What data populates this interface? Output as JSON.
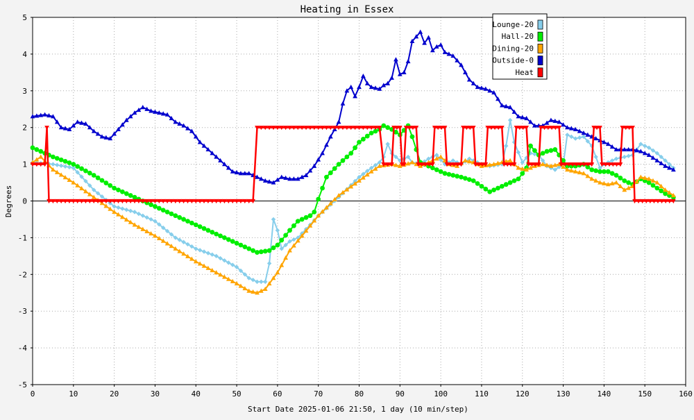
{
  "chart_data": {
    "type": "line",
    "title": "Heating in Essex",
    "xlabel": "Start Date 2025-01-06 21:50, 1 day (10 min/step)",
    "ylabel": "Degrees",
    "xlim": [
      0,
      160
    ],
    "ylim": [
      -5,
      5
    ],
    "xticks": [
      0,
      10,
      20,
      30,
      40,
      50,
      60,
      70,
      80,
      90,
      100,
      110,
      120,
      130,
      140,
      150,
      160
    ],
    "yticks": [
      -5,
      -4,
      -3,
      -2,
      -1,
      0,
      1,
      2,
      3,
      4,
      5
    ],
    "grid": true,
    "legend_position": "top-right",
    "series": [
      {
        "name": "Lounge-20",
        "color": "#87ceeb",
        "marker": "diamond",
        "points": [
          [
            0,
            1.05
          ],
          [
            5,
            1.0
          ],
          [
            10,
            0.9
          ],
          [
            15,
            0.3
          ],
          [
            20,
            -0.15
          ],
          [
            25,
            -0.3
          ],
          [
            30,
            -0.55
          ],
          [
            35,
            -1.0
          ],
          [
            40,
            -1.3
          ],
          [
            45,
            -1.5
          ],
          [
            50,
            -1.8
          ],
          [
            53,
            -2.1
          ],
          [
            55,
            -2.2
          ],
          [
            57,
            -2.2
          ],
          [
            58,
            -1.7
          ],
          [
            59,
            -0.5
          ],
          [
            60,
            -0.8
          ],
          [
            61,
            -1.3
          ],
          [
            63,
            -1.1
          ],
          [
            65,
            -1.0
          ],
          [
            68,
            -0.65
          ],
          [
            70,
            -0.4
          ],
          [
            75,
            0.1
          ],
          [
            80,
            0.65
          ],
          [
            83,
            0.9
          ],
          [
            85,
            1.05
          ],
          [
            86,
            1.2
          ],
          [
            87,
            1.55
          ],
          [
            88,
            1.3
          ],
          [
            90,
            1.1
          ],
          [
            92,
            1.2
          ],
          [
            93,
            1.05
          ],
          [
            95,
            1.0
          ],
          [
            97,
            1.15
          ],
          [
            99,
            1.25
          ],
          [
            101,
            1.0
          ],
          [
            103,
            1.1
          ],
          [
            105,
            1.0
          ],
          [
            107,
            1.15
          ],
          [
            110,
            1.0
          ],
          [
            112,
            0.95
          ],
          [
            115,
            1.0
          ],
          [
            116,
            1.5
          ],
          [
            117,
            2.2
          ],
          [
            118,
            1.6
          ],
          [
            120,
            1.05
          ],
          [
            122,
            1.3
          ],
          [
            124,
            1.25
          ],
          [
            126,
            0.95
          ],
          [
            128,
            0.85
          ],
          [
            130,
            1.0
          ],
          [
            131,
            1.8
          ],
          [
            133,
            1.7
          ],
          [
            135,
            1.75
          ],
          [
            137,
            1.5
          ],
          [
            139,
            0.9
          ],
          [
            140,
            1.0
          ],
          [
            143,
            1.15
          ],
          [
            145,
            1.2
          ],
          [
            147,
            1.25
          ],
          [
            149,
            1.55
          ],
          [
            151,
            1.45
          ],
          [
            153,
            1.3
          ],
          [
            155,
            1.1
          ],
          [
            157,
            0.9
          ]
        ]
      },
      {
        "name": "Hall-20",
        "color": "#00ee00",
        "marker": "circle",
        "points": [
          [
            0,
            1.45
          ],
          [
            5,
            1.2
          ],
          [
            10,
            1.0
          ],
          [
            15,
            0.7
          ],
          [
            20,
            0.35
          ],
          [
            25,
            0.1
          ],
          [
            30,
            -0.15
          ],
          [
            35,
            -0.4
          ],
          [
            40,
            -0.65
          ],
          [
            45,
            -0.9
          ],
          [
            50,
            -1.15
          ],
          [
            55,
            -1.4
          ],
          [
            58,
            -1.35
          ],
          [
            60,
            -1.2
          ],
          [
            63,
            -0.8
          ],
          [
            65,
            -0.55
          ],
          [
            68,
            -0.4
          ],
          [
            69,
            -0.3
          ],
          [
            70,
            0.05
          ],
          [
            72,
            0.65
          ],
          [
            75,
            1.0
          ],
          [
            78,
            1.3
          ],
          [
            80,
            1.6
          ],
          [
            83,
            1.85
          ],
          [
            85,
            1.95
          ],
          [
            86,
            2.05
          ],
          [
            88,
            1.95
          ],
          [
            90,
            1.8
          ],
          [
            92,
            2.05
          ],
          [
            93,
            1.75
          ],
          [
            95,
            1.05
          ],
          [
            97,
            0.95
          ],
          [
            99,
            0.85
          ],
          [
            101,
            0.75
          ],
          [
            103,
            0.7
          ],
          [
            105,
            0.65
          ],
          [
            108,
            0.55
          ],
          [
            110,
            0.4
          ],
          [
            112,
            0.25
          ],
          [
            115,
            0.4
          ],
          [
            117,
            0.5
          ],
          [
            119,
            0.6
          ],
          [
            121,
            0.9
          ],
          [
            122,
            1.5
          ],
          [
            124,
            1.25
          ],
          [
            126,
            1.35
          ],
          [
            128,
            1.4
          ],
          [
            129,
            1.25
          ],
          [
            131,
            0.95
          ],
          [
            133,
            0.95
          ],
          [
            135,
            1.0
          ],
          [
            137,
            0.85
          ],
          [
            139,
            0.8
          ],
          [
            141,
            0.8
          ],
          [
            143,
            0.7
          ],
          [
            145,
            0.55
          ],
          [
            147,
            0.45
          ],
          [
            149,
            0.6
          ],
          [
            151,
            0.5
          ],
          [
            153,
            0.35
          ],
          [
            155,
            0.2
          ],
          [
            157,
            0.1
          ]
        ]
      },
      {
        "name": "Dining-20",
        "color": "#ffa500",
        "marker": "triangle",
        "points": [
          [
            0,
            1.05
          ],
          [
            2,
            1.2
          ],
          [
            5,
            0.85
          ],
          [
            10,
            0.5
          ],
          [
            15,
            0.1
          ],
          [
            20,
            -0.3
          ],
          [
            25,
            -0.65
          ],
          [
            30,
            -0.95
          ],
          [
            35,
            -1.3
          ],
          [
            40,
            -1.65
          ],
          [
            45,
            -1.95
          ],
          [
            50,
            -2.25
          ],
          [
            53,
            -2.45
          ],
          [
            55,
            -2.5
          ],
          [
            57,
            -2.4
          ],
          [
            60,
            -1.95
          ],
          [
            63,
            -1.35
          ],
          [
            66,
            -0.95
          ],
          [
            70,
            -0.4
          ],
          [
            75,
            0.15
          ],
          [
            80,
            0.55
          ],
          [
            83,
            0.8
          ],
          [
            85,
            0.95
          ],
          [
            88,
            1.0
          ],
          [
            90,
            0.95
          ],
          [
            93,
            1.05
          ],
          [
            95,
            0.95
          ],
          [
            98,
            1.1
          ],
          [
            100,
            1.2
          ],
          [
            102,
            1.0
          ],
          [
            104,
            0.95
          ],
          [
            106,
            1.1
          ],
          [
            108,
            1.05
          ],
          [
            110,
            0.95
          ],
          [
            113,
            1.0
          ],
          [
            115,
            1.05
          ],
          [
            117,
            1.1
          ],
          [
            119,
            0.9
          ],
          [
            121,
            0.85
          ],
          [
            123,
            0.95
          ],
          [
            125,
            1.0
          ],
          [
            127,
            0.95
          ],
          [
            129,
            1.0
          ],
          [
            131,
            0.85
          ],
          [
            133,
            0.8
          ],
          [
            135,
            0.75
          ],
          [
            137,
            0.6
          ],
          [
            139,
            0.5
          ],
          [
            141,
            0.45
          ],
          [
            143,
            0.5
          ],
          [
            145,
            0.3
          ],
          [
            147,
            0.4
          ],
          [
            149,
            0.65
          ],
          [
            151,
            0.6
          ],
          [
            153,
            0.5
          ],
          [
            155,
            0.3
          ],
          [
            157,
            0.15
          ]
        ]
      },
      {
        "name": "Outside-0",
        "color": "#0000cd",
        "marker": "triangle",
        "points": [
          [
            0,
            2.3
          ],
          [
            3,
            2.35
          ],
          [
            5,
            2.3
          ],
          [
            7,
            2.0
          ],
          [
            9,
            1.95
          ],
          [
            11,
            2.15
          ],
          [
            13,
            2.1
          ],
          [
            15,
            1.9
          ],
          [
            17,
            1.75
          ],
          [
            19,
            1.7
          ],
          [
            21,
            1.95
          ],
          [
            23,
            2.2
          ],
          [
            25,
            2.4
          ],
          [
            27,
            2.55
          ],
          [
            29,
            2.45
          ],
          [
            31,
            2.4
          ],
          [
            33,
            2.35
          ],
          [
            35,
            2.15
          ],
          [
            37,
            2.05
          ],
          [
            39,
            1.9
          ],
          [
            41,
            1.6
          ],
          [
            43,
            1.4
          ],
          [
            45,
            1.2
          ],
          [
            47,
            1.0
          ],
          [
            49,
            0.8
          ],
          [
            51,
            0.75
          ],
          [
            53,
            0.75
          ],
          [
            55,
            0.65
          ],
          [
            57,
            0.55
          ],
          [
            59,
            0.5
          ],
          [
            61,
            0.65
          ],
          [
            63,
            0.6
          ],
          [
            65,
            0.6
          ],
          [
            67,
            0.7
          ],
          [
            69,
            0.95
          ],
          [
            71,
            1.3
          ],
          [
            73,
            1.75
          ],
          [
            75,
            2.15
          ],
          [
            76,
            2.65
          ],
          [
            77,
            3.0
          ],
          [
            78,
            3.1
          ],
          [
            79,
            2.85
          ],
          [
            80,
            3.1
          ],
          [
            81,
            3.4
          ],
          [
            82,
            3.2
          ],
          [
            83,
            3.1
          ],
          [
            85,
            3.05
          ],
          [
            86,
            3.15
          ],
          [
            87,
            3.2
          ],
          [
            88,
            3.35
          ],
          [
            89,
            3.85
          ],
          [
            90,
            3.45
          ],
          [
            91,
            3.5
          ],
          [
            92,
            3.8
          ],
          [
            93,
            4.35
          ],
          [
            95,
            4.6
          ],
          [
            96,
            4.3
          ],
          [
            97,
            4.45
          ],
          [
            98,
            4.1
          ],
          [
            99,
            4.2
          ],
          [
            100,
            4.25
          ],
          [
            101,
            4.05
          ],
          [
            103,
            3.95
          ],
          [
            105,
            3.7
          ],
          [
            107,
            3.3
          ],
          [
            109,
            3.1
          ],
          [
            111,
            3.05
          ],
          [
            113,
            2.95
          ],
          [
            115,
            2.6
          ],
          [
            117,
            2.55
          ],
          [
            119,
            2.3
          ],
          [
            121,
            2.25
          ],
          [
            123,
            2.05
          ],
          [
            125,
            2.05
          ],
          [
            127,
            2.2
          ],
          [
            129,
            2.15
          ],
          [
            131,
            2.0
          ],
          [
            133,
            1.95
          ],
          [
            135,
            1.85
          ],
          [
            137,
            1.75
          ],
          [
            139,
            1.65
          ],
          [
            141,
            1.55
          ],
          [
            143,
            1.4
          ],
          [
            145,
            1.4
          ],
          [
            147,
            1.4
          ],
          [
            149,
            1.35
          ],
          [
            151,
            1.25
          ],
          [
            153,
            1.1
          ],
          [
            155,
            0.95
          ],
          [
            157,
            0.85
          ]
        ]
      },
      {
        "name": "Heat",
        "color": "#ff0000",
        "marker": "triangle-down",
        "points": [
          [
            0,
            1.0
          ],
          [
            3,
            1.0
          ],
          [
            3.5,
            2.0
          ],
          [
            4,
            0.0
          ],
          [
            54,
            0.0
          ],
          [
            55,
            2.0
          ],
          [
            85,
            2.0
          ],
          [
            86,
            1.0
          ],
          [
            88,
            1.0
          ],
          [
            88.5,
            2.0
          ],
          [
            90,
            2.0
          ],
          [
            90.5,
            1.0
          ],
          [
            91,
            1.0
          ],
          [
            91.5,
            2.0
          ],
          [
            94,
            2.0
          ],
          [
            94.5,
            1.0
          ],
          [
            98,
            1.0
          ],
          [
            98.5,
            2.0
          ],
          [
            101,
            2.0
          ],
          [
            101.5,
            1.0
          ],
          [
            105,
            1.0
          ],
          [
            105.5,
            2.0
          ],
          [
            108,
            2.0
          ],
          [
            108.5,
            1.0
          ],
          [
            111,
            1.0
          ],
          [
            111.5,
            2.0
          ],
          [
            115,
            2.0
          ],
          [
            115.5,
            1.0
          ],
          [
            118,
            1.0
          ],
          [
            118.5,
            2.0
          ],
          [
            121,
            2.0
          ],
          [
            121.5,
            1.0
          ],
          [
            124,
            1.0
          ],
          [
            124.5,
            2.0
          ],
          [
            129,
            2.0
          ],
          [
            129.5,
            1.0
          ],
          [
            137,
            1.0
          ],
          [
            137.5,
            2.0
          ],
          [
            139,
            2.0
          ],
          [
            139.5,
            1.0
          ],
          [
            144,
            1.0
          ],
          [
            144.5,
            2.0
          ],
          [
            147,
            2.0
          ],
          [
            147.5,
            0.0
          ],
          [
            157,
            0.0
          ]
        ]
      }
    ]
  }
}
